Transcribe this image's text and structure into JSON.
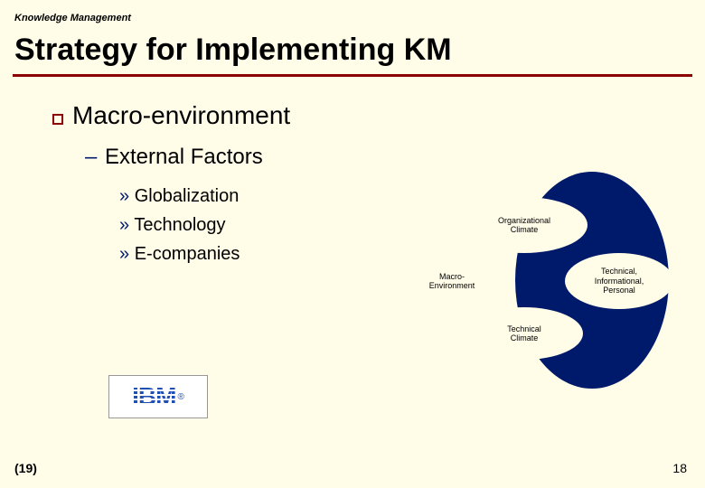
{
  "header": "Knowledge Management",
  "title": "Strategy for Implementing KM",
  "main_bullet": "Macro-environment",
  "sub_heading": "External Factors",
  "items": [
    "Globalization",
    "Technology",
    "E-companies"
  ],
  "diagram": {
    "big_color": "#001a6b",
    "small_color": "#fffde8",
    "labels": {
      "top": "Organizational\nClimate",
      "left": "Macro-\nEnvironment",
      "right": "Technical,\nInformational,\nPersonal",
      "bottom": "Technical\nClimate"
    }
  },
  "logo_text": "IBM",
  "page_left": "(19)",
  "page_right": "18",
  "colors": {
    "background": "#fffde8",
    "rule": "#8b0000",
    "accent": "#001a6b"
  }
}
